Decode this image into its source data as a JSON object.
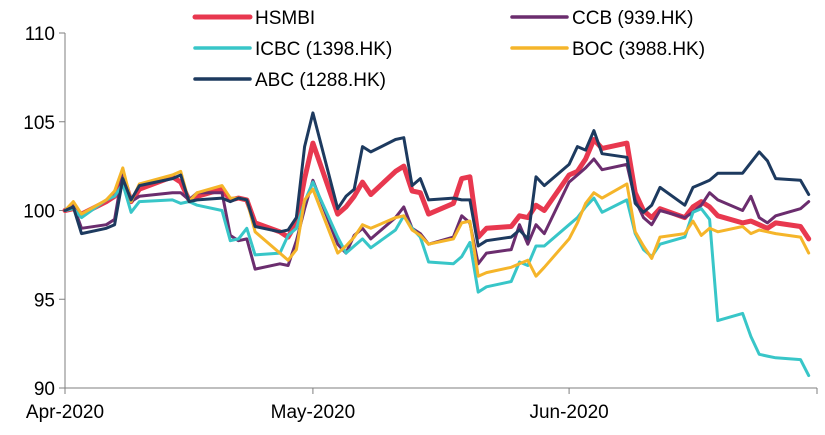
{
  "chart_data": {
    "type": "line",
    "x": [
      "2020-04-01",
      "2020-04-02",
      "2020-04-03",
      "2020-04-06",
      "2020-04-07",
      "2020-04-08",
      "2020-04-09",
      "2020-04-10",
      "2020-04-14",
      "2020-04-15",
      "2020-04-16",
      "2020-04-17",
      "2020-04-20",
      "2020-04-21",
      "2020-04-22",
      "2020-04-23",
      "2020-04-24",
      "2020-04-27",
      "2020-04-28",
      "2020-04-29",
      "2020-04-30",
      "2020-05-01",
      "2020-05-04",
      "2020-05-05",
      "2020-05-06",
      "2020-05-07",
      "2020-05-08",
      "2020-05-11",
      "2020-05-12",
      "2020-05-13",
      "2020-05-14",
      "2020-05-15",
      "2020-05-18",
      "2020-05-19",
      "2020-05-20",
      "2020-05-21",
      "2020-05-22",
      "2020-05-25",
      "2020-05-26",
      "2020-05-27",
      "2020-05-28",
      "2020-05-29",
      "2020-06-01",
      "2020-06-02",
      "2020-06-03",
      "2020-06-04",
      "2020-06-05",
      "2020-06-08",
      "2020-06-09",
      "2020-06-10",
      "2020-06-11",
      "2020-06-12",
      "2020-06-15",
      "2020-06-16",
      "2020-06-17",
      "2020-06-18",
      "2020-06-19",
      "2020-06-22",
      "2020-06-23",
      "2020-06-24",
      "2020-06-25",
      "2020-06-26",
      "2020-06-29",
      "2020-06-30"
    ],
    "x_ticks": [
      "Apr-2020",
      "May-2020",
      "Jun-2020"
    ],
    "x_tick_dates": [
      "2020-04-01",
      "2020-05-01",
      "2020-06-01"
    ],
    "x_range": [
      "2020-04-01",
      "2020-07-01"
    ],
    "y_ticks": [
      90,
      95,
      100,
      105,
      110
    ],
    "ylim": [
      90,
      110
    ],
    "legend_position": "top",
    "grid": false,
    "series": [
      {
        "name": "HSMBI",
        "color": "#e8384f",
        "width": 5,
        "values": [
          100.0,
          100.1,
          99.8,
          100.5,
          100.8,
          102.0,
          100.5,
          101.2,
          101.9,
          101.6,
          100.6,
          100.8,
          101.2,
          100.6,
          100.7,
          100.6,
          99.3,
          98.8,
          98.5,
          99.3,
          101.8,
          103.8,
          99.8,
          100.2,
          100.8,
          101.6,
          100.9,
          102.2,
          102.5,
          101.1,
          101.0,
          99.8,
          100.4,
          101.8,
          101.9,
          98.5,
          99.0,
          99.1,
          99.7,
          99.6,
          100.3,
          100.0,
          102.0,
          102.2,
          102.9,
          104.0,
          103.5,
          103.8,
          101.0,
          100.0,
          99.6,
          100.1,
          99.6,
          100.2,
          100.5,
          100.2,
          99.7,
          99.3,
          99.4,
          99.2,
          99.0,
          99.3,
          99.1,
          98.4
        ]
      },
      {
        "name": "CCB (939.HK)",
        "color": "#6b2d6e",
        "width": 3,
        "values": [
          100.0,
          100.3,
          99.0,
          99.2,
          99.5,
          102.2,
          100.5,
          100.8,
          101.0,
          101.0,
          100.6,
          101.0,
          101.0,
          98.6,
          98.3,
          98.4,
          96.7,
          97.0,
          96.9,
          98.3,
          100.1,
          101.7,
          98.1,
          97.6,
          98.6,
          99.0,
          98.4,
          99.6,
          100.2,
          99.0,
          98.7,
          98.1,
          98.5,
          99.7,
          99.3,
          97.0,
          97.6,
          97.8,
          99.2,
          98.1,
          99.2,
          98.7,
          101.6,
          102.0,
          102.4,
          102.9,
          102.3,
          102.6,
          100.6,
          99.6,
          99.2,
          100.0,
          99.6,
          99.9,
          100.3,
          101.0,
          100.6,
          100.0,
          100.8,
          99.6,
          99.3,
          99.7,
          100.1,
          100.5
        ]
      },
      {
        "name": "ICBC (1398.HK)",
        "color": "#38c6c8",
        "width": 3,
        "values": [
          100.0,
          100.1,
          99.6,
          100.6,
          100.8,
          101.5,
          99.9,
          100.5,
          100.6,
          100.4,
          100.5,
          100.3,
          100.0,
          98.3,
          98.4,
          99.0,
          97.5,
          97.6,
          98.6,
          99.0,
          100.5,
          101.6,
          98.5,
          97.6,
          98.0,
          98.4,
          97.9,
          98.9,
          99.7,
          99.0,
          98.5,
          97.1,
          97.0,
          97.4,
          98.2,
          95.4,
          95.7,
          96.0,
          97.1,
          96.9,
          98.0,
          98.0,
          99.2,
          99.6,
          100.2,
          100.7,
          99.9,
          100.6,
          98.7,
          97.8,
          97.4,
          98.1,
          98.5,
          99.9,
          100.1,
          99.5,
          93.8,
          94.2,
          92.9,
          91.9,
          91.8,
          91.7,
          91.6,
          90.7
        ]
      },
      {
        "name": "BOC (3988.HK)",
        "color": "#f5b52a",
        "width": 3,
        "values": [
          100.0,
          100.5,
          99.8,
          100.6,
          101.1,
          102.4,
          100.5,
          101.5,
          102.0,
          102.2,
          100.5,
          101.0,
          101.4,
          100.7,
          100.7,
          100.6,
          98.8,
          97.6,
          97.2,
          97.8,
          100.6,
          101.2,
          97.6,
          98.0,
          98.5,
          99.2,
          99.0,
          99.6,
          99.7,
          98.9,
          98.6,
          98.1,
          98.4,
          99.3,
          99.4,
          96.3,
          96.5,
          96.8,
          97.0,
          97.2,
          96.3,
          96.8,
          98.4,
          99.3,
          100.4,
          101.0,
          100.7,
          101.5,
          98.8,
          98.0,
          97.3,
          98.5,
          98.7,
          99.4,
          98.6,
          99.0,
          98.8,
          99.1,
          98.7,
          98.9,
          98.8,
          98.7,
          98.5,
          97.6
        ]
      },
      {
        "name": "ABC (1288.HK)",
        "color": "#1d3a5f",
        "width": 3,
        "values": [
          100.0,
          100.2,
          98.7,
          99.0,
          99.2,
          101.8,
          100.6,
          101.4,
          101.8,
          102.0,
          100.5,
          100.6,
          100.7,
          100.5,
          100.7,
          100.6,
          99.1,
          98.8,
          98.9,
          99.6,
          103.6,
          105.5,
          100.1,
          100.8,
          101.2,
          103.6,
          103.3,
          104.0,
          104.1,
          101.4,
          101.8,
          100.6,
          100.7,
          100.6,
          100.6,
          98.0,
          98.3,
          98.5,
          98.9,
          98.4,
          101.9,
          101.4,
          102.6,
          103.6,
          103.4,
          104.5,
          103.2,
          103.0,
          100.4,
          99.9,
          100.3,
          101.3,
          100.3,
          101.3,
          101.5,
          101.7,
          102.1,
          102.1,
          102.7,
          103.3,
          102.8,
          101.8,
          101.7,
          100.9
        ]
      }
    ]
  }
}
